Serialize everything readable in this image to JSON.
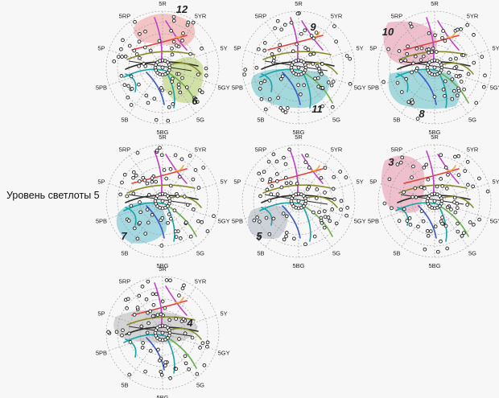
{
  "side_title": "Уровень светлоты 5",
  "hue_labels": [
    "5R",
    "5YR",
    "5Y",
    "5GY",
    "5G",
    "5BG",
    "5B",
    "5PB",
    "5P",
    "5RP"
  ],
  "diagrams": [
    {
      "region_number": "12",
      "regions": [
        {
          "name": "region-12",
          "color": "#f09a9a",
          "opacity": 0.55
        },
        {
          "name": "region-6",
          "color": "#b8d070",
          "opacity": 0.6
        }
      ],
      "numbers": [
        "12",
        "6"
      ]
    },
    {
      "region_number": "9",
      "regions": [
        {
          "name": "region-11",
          "color": "#5fc0c6",
          "opacity": 0.55
        }
      ],
      "numbers": [
        "9",
        "11"
      ]
    },
    {
      "region_number": "10",
      "regions": [
        {
          "name": "region-10",
          "color": "#e58aa6",
          "opacity": 0.5
        },
        {
          "name": "region-8",
          "color": "#5fc0c6",
          "opacity": 0.55
        }
      ],
      "numbers": [
        "10",
        "8"
      ]
    },
    {
      "region_number": "7",
      "regions": [
        {
          "name": "region-7",
          "color": "#63c0d0",
          "opacity": 0.55
        }
      ],
      "numbers": [
        "7"
      ]
    },
    {
      "region_number": "5",
      "regions": [
        {
          "name": "region-5",
          "color": "#9aa4b4",
          "opacity": 0.45
        }
      ],
      "numbers": [
        "5"
      ]
    },
    {
      "region_number": "3",
      "regions": [
        {
          "name": "region-3",
          "color": "#e58aa6",
          "opacity": 0.5
        }
      ],
      "numbers": [
        "3"
      ]
    },
    {
      "region_number": "4",
      "regions": [
        {
          "name": "region-4",
          "color": "#a8a8a8",
          "opacity": 0.45
        }
      ],
      "numbers": [
        "4"
      ]
    }
  ],
  "line_colors": {
    "red": "#e2413b",
    "magenta": "#c13fc5",
    "orange": "#f2a93b",
    "olive": "#8a8a2a",
    "green": "#6ab04c",
    "teal": "#19a3a8",
    "blue": "#3a5bc8",
    "dark": "#2b2b2b"
  }
}
